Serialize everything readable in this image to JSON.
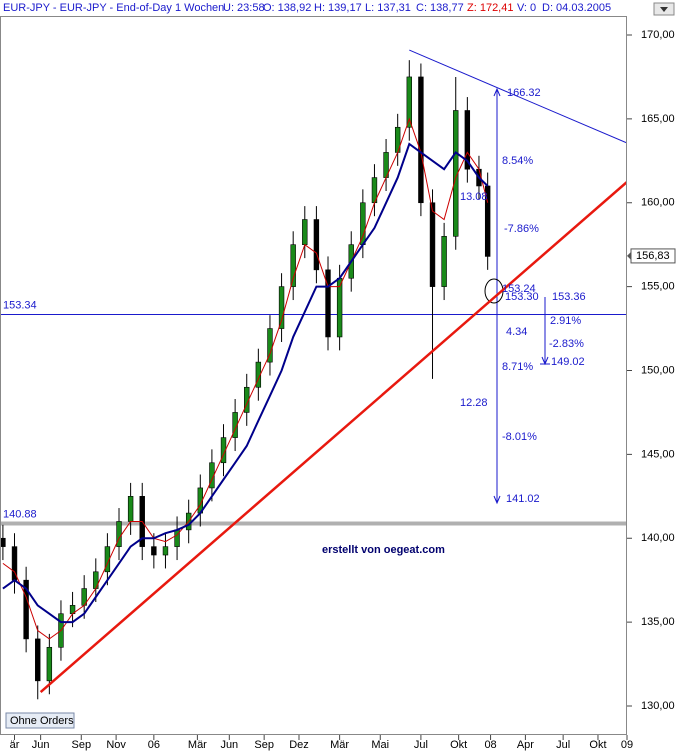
{
  "chart_data": {
    "type": "candlestick",
    "header": [
      "EUR-JPY - EUR-JPY - End-of-Day 1 Wochen",
      "U: 23:58",
      "O: 138,92",
      "H: 139,17",
      "L: 137,31",
      "C: 138,77",
      "Z: 172,41",
      "V: 0",
      "D: 04.03.2005"
    ],
    "xlim": [
      0,
      216
    ],
    "xticks": [
      {
        "value": 5,
        "label": "är"
      },
      {
        "value": 14,
        "label": "Jun"
      },
      {
        "value": 28,
        "label": "Sep"
      },
      {
        "value": 40,
        "label": "Nov"
      },
      {
        "value": 53,
        "label": "06"
      },
      {
        "value": 68,
        "label": "Mär"
      },
      {
        "value": 79,
        "label": "Jun"
      },
      {
        "value": 91,
        "label": "Sep"
      },
      {
        "value": 103,
        "label": "Dez"
      },
      {
        "value": 117,
        "label": "Mär"
      },
      {
        "value": 131,
        "label": "Mai"
      },
      {
        "value": 145,
        "label": "Jul"
      },
      {
        "value": 158,
        "label": "Okt"
      },
      {
        "value": 169,
        "label": "08"
      },
      {
        "value": 181,
        "label": "Apr"
      },
      {
        "value": 194,
        "label": "Jul"
      },
      {
        "value": 206,
        "label": "Okt"
      },
      {
        "value": 216,
        "label": "09"
      }
    ],
    "ylim": [
      129.2,
      170.6
    ],
    "yticks": [
      {
        "value": 130,
        "label": "130,00"
      },
      {
        "value": 135,
        "label": "135,00"
      },
      {
        "value": 140,
        "label": "140,00"
      },
      {
        "value": 145,
        "label": "145,00"
      },
      {
        "value": 150,
        "label": "150,00"
      },
      {
        "value": 155,
        "label": "155,00"
      },
      {
        "value": 160,
        "label": "160,00"
      },
      {
        "value": 165,
        "label": "165,00"
      },
      {
        "value": 170,
        "label": "170,00"
      }
    ],
    "x": [
      1,
      5,
      9,
      13,
      17,
      21,
      25,
      29,
      33,
      37,
      41,
      45,
      49,
      53,
      57,
      61,
      65,
      69,
      73,
      77,
      81,
      85,
      89,
      93,
      97,
      101,
      105,
      109,
      113,
      117,
      121,
      125,
      129,
      133,
      137,
      141,
      145,
      149,
      153,
      157,
      161,
      165,
      168
    ],
    "open": [
      140.0,
      139.5,
      137.5,
      134.0,
      131.5,
      133.5,
      135.5,
      136.0,
      137.0,
      138.0,
      139.5,
      141.0,
      142.5,
      139.5,
      139.0,
      139.5,
      140.5,
      141.5,
      143.0,
      144.5,
      146.0,
      147.5,
      149.0,
      150.5,
      152.5,
      155.0,
      157.5,
      159.0,
      156.0,
      152.0,
      155.5,
      157.5,
      160.0,
      161.5,
      163.0,
      164.5,
      167.5,
      160.0,
      155.0,
      158.0,
      165.5,
      162.0,
      161.0
    ],
    "high": [
      140.8,
      140.3,
      138.3,
      134.8,
      134.3,
      136.3,
      136.8,
      137.8,
      138.8,
      140.3,
      141.8,
      143.3,
      143.3,
      140.3,
      140.3,
      141.3,
      142.3,
      143.8,
      145.3,
      146.8,
      148.3,
      149.8,
      151.3,
      153.3,
      155.8,
      158.3,
      159.8,
      159.8,
      156.8,
      156.3,
      158.3,
      160.8,
      162.3,
      163.8,
      165.3,
      168.5,
      168.3,
      160.8,
      158.8,
      167.5,
      166.3,
      162.8,
      161.8
    ],
    "low": [
      138.7,
      136.7,
      133.2,
      130.4,
      130.7,
      132.7,
      134.7,
      135.2,
      136.2,
      137.2,
      138.7,
      140.2,
      138.7,
      138.2,
      138.2,
      138.7,
      139.7,
      140.7,
      142.2,
      143.7,
      145.2,
      146.7,
      148.2,
      149.7,
      151.7,
      154.2,
      156.7,
      155.2,
      151.2,
      151.2,
      154.7,
      156.7,
      159.2,
      160.7,
      162.2,
      163.7,
      159.2,
      149.5,
      154.2,
      157.2,
      161.2,
      160.2,
      156.0
    ],
    "close": [
      139.5,
      137.5,
      134.0,
      131.5,
      133.5,
      135.5,
      136.0,
      137.0,
      138.0,
      139.5,
      141.0,
      142.5,
      139.5,
      139.0,
      139.5,
      140.5,
      141.5,
      143.0,
      144.5,
      146.0,
      147.5,
      149.0,
      150.5,
      152.5,
      155.0,
      157.5,
      159.0,
      156.0,
      152.0,
      155.5,
      157.5,
      160.0,
      161.5,
      163.0,
      164.5,
      167.5,
      160.0,
      155.0,
      158.0,
      165.5,
      162.0,
      161.0,
      156.8
    ],
    "up_color": "#1a8a1a",
    "down_color": "#000000",
    "moving_averages": [
      {
        "color": "#cc0000",
        "values": [
          138.5,
          138,
          136.5,
          134.5,
          134,
          134.5,
          135.5,
          136,
          137,
          138.5,
          140,
          141,
          141,
          140,
          139.8,
          140.2,
          141,
          142,
          143.5,
          145,
          146.5,
          148,
          149.5,
          151,
          153,
          155.5,
          157.5,
          157,
          155,
          155,
          156.5,
          158,
          160,
          161.5,
          163,
          165,
          163,
          159.5,
          159,
          161.5,
          163,
          162,
          160
        ]
      },
      {
        "color": "#00008b",
        "values": [
          137,
          137.5,
          137,
          136,
          135.5,
          135,
          135,
          135.5,
          136.5,
          137.5,
          138.5,
          139.5,
          140,
          140,
          140.3,
          140.5,
          140.8,
          141.5,
          142.5,
          143.5,
          144.5,
          145.5,
          147,
          148.5,
          150,
          152,
          153.5,
          155,
          155,
          155.5,
          156.5,
          157.5,
          158.5,
          160,
          161.5,
          163.5,
          163,
          162.5,
          162,
          163,
          162.5,
          161.5,
          161
        ]
      }
    ],
    "trend_lines": [
      {
        "color": "#e8190f",
        "x": [
          14,
          216
        ],
        "y": [
          130.83,
          161.24
        ]
      },
      {
        "color": "#1a1acc",
        "x": [
          141,
          216
        ],
        "y": [
          169.1,
          163.56
        ]
      }
    ],
    "hlines": [
      {
        "value": 153.34,
        "label": "153.34",
        "color": "#1a1acc"
      },
      {
        "value": 140.88,
        "label": "140.88",
        "color": "#b0b0b0"
      }
    ],
    "last_price": {
      "value": 156.83,
      "label": "156,83"
    },
    "annotations": [
      "166.32",
      "8.54%",
      "13.08",
      "-7.86%",
      "153.24",
      "153.30",
      "153.36",
      "4.34",
      "2.91%",
      "-2.83%",
      "149.02",
      "8.71%",
      "12.28",
      "-8.01%",
      "141.02"
    ],
    "watermark": "erstellt von oegeat.com",
    "button": "Ohne Orders"
  }
}
